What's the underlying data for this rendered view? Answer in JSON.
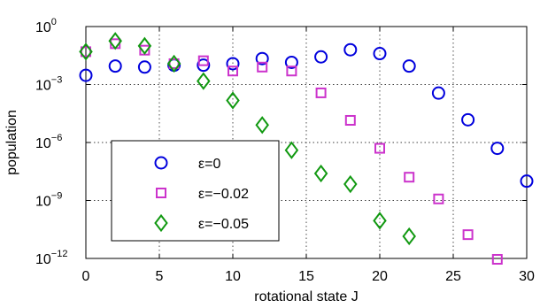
{
  "chart_data": {
    "type": "scatter",
    "xlabel": "rotational state J",
    "ylabel": "population",
    "xlim": [
      0,
      30
    ],
    "ylim_log10": [
      -12,
      0
    ],
    "y_scale": "log",
    "x_ticks": [
      "0",
      "5",
      "10",
      "15",
      "20",
      "25",
      "30"
    ],
    "y_ticks": [
      {
        "base": "10",
        "exp": "0"
      },
      {
        "base": "10",
        "exp": "−3"
      },
      {
        "base": "10",
        "exp": "−6"
      },
      {
        "base": "10",
        "exp": "−9"
      },
      {
        "base": "10",
        "exp": "−12"
      }
    ],
    "grid": true,
    "legend_position": "bottom-left",
    "series": [
      {
        "name": "ε=0",
        "marker": "circle",
        "color": "#0000dd",
        "x": [
          0,
          2,
          4,
          6,
          8,
          10,
          12,
          14,
          16,
          18,
          20,
          22,
          24,
          26,
          28,
          30
        ],
        "y": [
          0.003,
          0.009,
          0.008,
          0.01,
          0.01,
          0.012,
          0.022,
          0.014,
          0.027,
          0.063,
          0.04,
          0.009,
          0.00036,
          1.5e-05,
          5e-07,
          1e-08
        ]
      },
      {
        "name": "ε=−0.02",
        "marker": "square",
        "color": "#cc33cc",
        "x": [
          0,
          2,
          4,
          6,
          8,
          10,
          12,
          14,
          16,
          18,
          20,
          22,
          24,
          26,
          28
        ],
        "y": [
          0.05,
          0.13,
          0.06,
          0.012,
          0.017,
          0.005,
          0.008,
          0.005,
          0.00037,
          1.4e-05,
          5e-07,
          1.6e-08,
          1.2e-09,
          1.7e-11,
          9e-13
        ]
      },
      {
        "name": "ε=−0.05",
        "marker": "diamond",
        "color": "#119911",
        "x": [
          0,
          2,
          4,
          6,
          8,
          10,
          12,
          14,
          16,
          18,
          20,
          22
        ],
        "y": [
          0.05,
          0.18,
          0.1,
          0.012,
          0.0015,
          0.00015,
          8e-06,
          4e-07,
          2.5e-08,
          7e-09,
          9e-11,
          1.4e-11
        ]
      }
    ]
  }
}
